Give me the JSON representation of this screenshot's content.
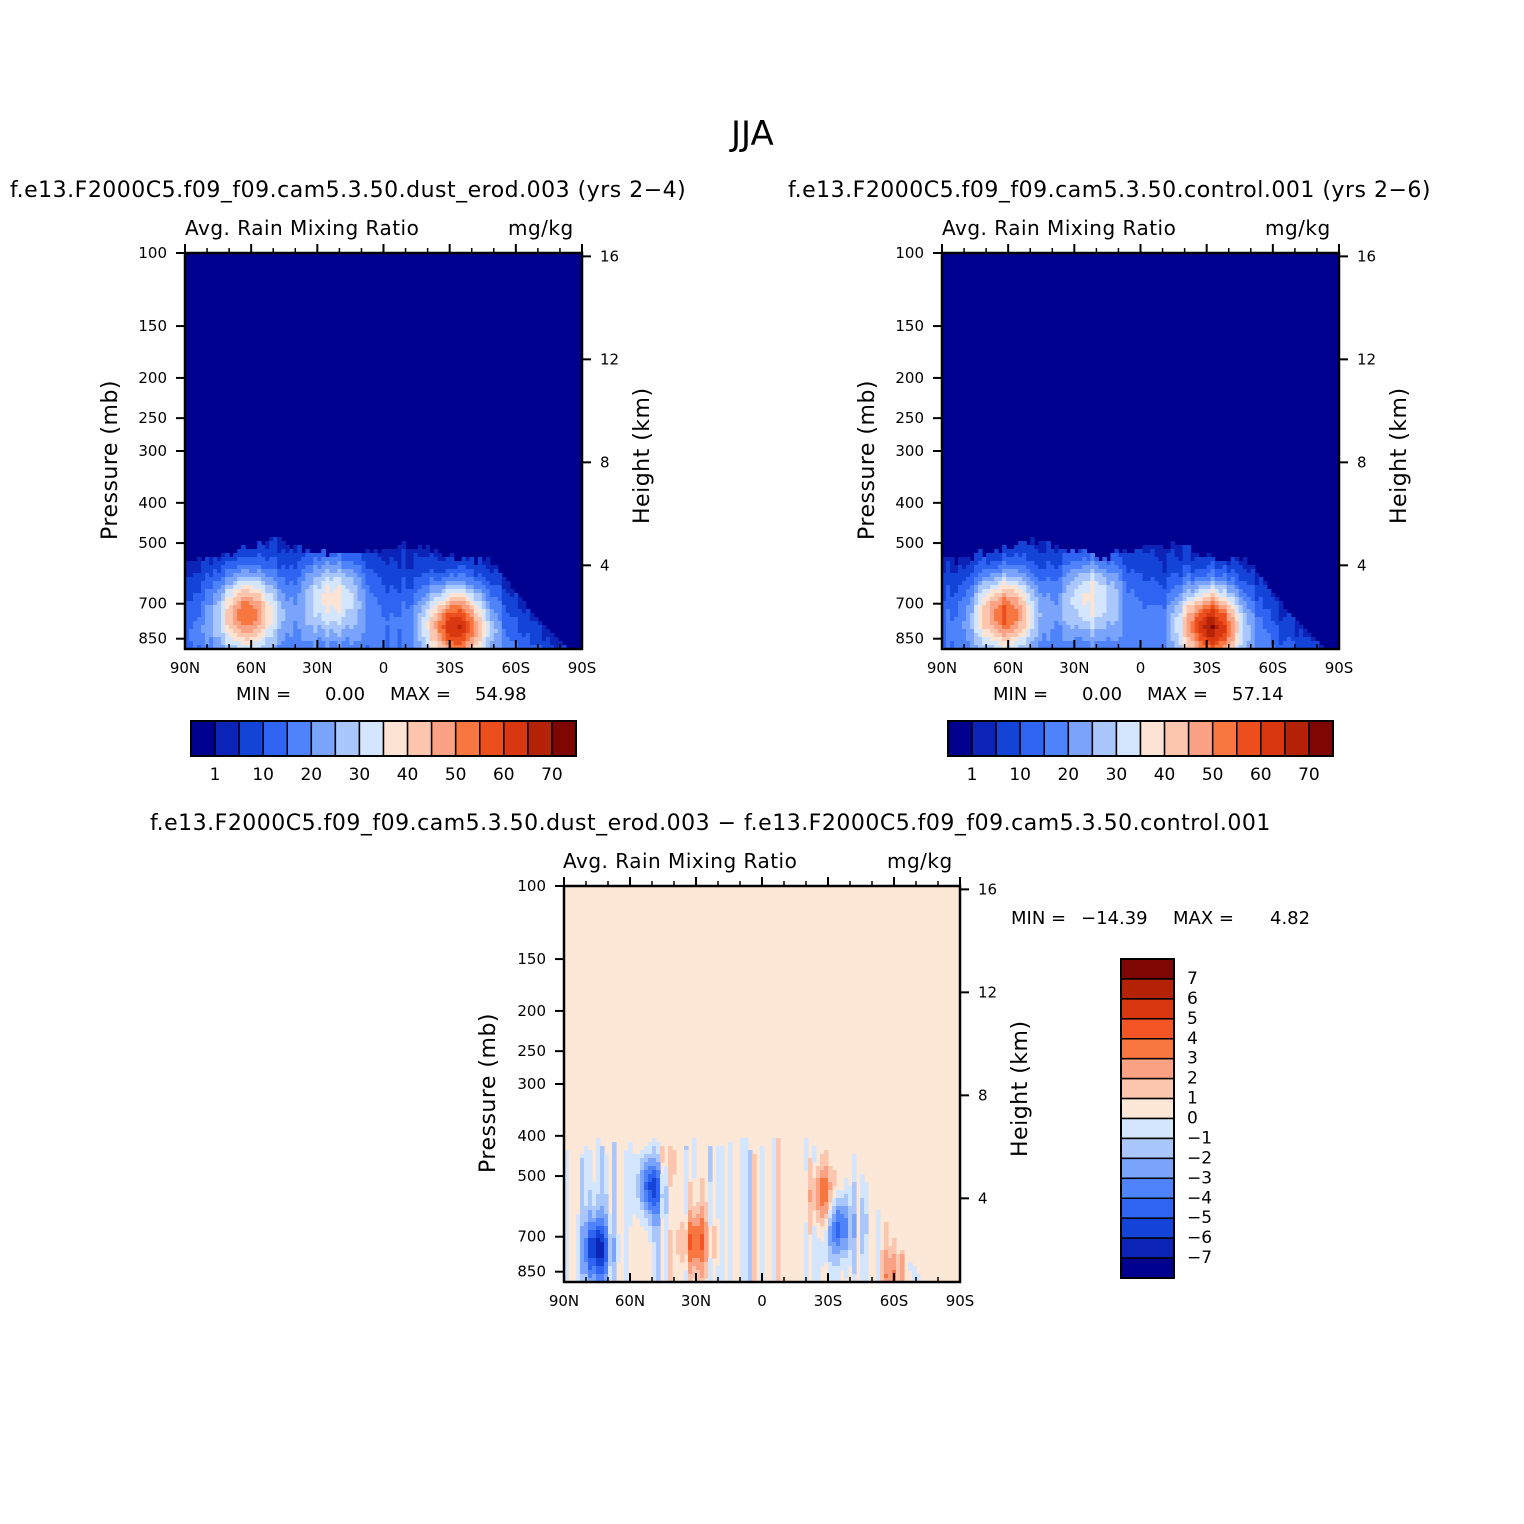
{
  "figure": {
    "title": "JJA",
    "difference_title": "f.e13.F2000C5.f09_f09.cam5.3.50.dust_erod.003 − f.e13.F2000C5.f09_f09.cam5.3.50.control.001"
  },
  "colors": {
    "abs_levels": [
      "#00008f",
      "#0b24b7",
      "#1444d7",
      "#2f63f2",
      "#4f83fb",
      "#7aa3fc",
      "#a9c7fd",
      "#d3e6fd",
      "#fde3d3",
      "#fcc6ae",
      "#fba184",
      "#f8763f",
      "#ed4e1d",
      "#d8370f",
      "#b42306",
      "#7e0704"
    ],
    "diff_levels": [
      "#00008f",
      "#0b24b7",
      "#1444d7",
      "#2f63f2",
      "#4f83fb",
      "#7aa3fc",
      "#a9c7fd",
      "#d3e6fd",
      "#fde8d8",
      "#fcc6ae",
      "#fba184",
      "#f8763f",
      "#f55525",
      "#d8370f",
      "#b42306",
      "#7e0704"
    ]
  },
  "chart_data": [
    {
      "type": "heatmap",
      "title": "f.e13.F2000C5.f09_f09.cam5.3.50.dust_erod.003 (yrs 2−4)",
      "left_label": "Avg. Rain Mixing Ratio",
      "right_label": "mg/kg",
      "ylabel": "Pressure (mb)",
      "y2label": "Height (km)",
      "x_ticks": [
        "90N",
        "60N",
        "30N",
        "0",
        "30S",
        "60S",
        "90S"
      ],
      "y_ticks": [
        "100",
        "150",
        "200",
        "250",
        "300",
        "400",
        "500",
        "700",
        "850"
      ],
      "y2_ticks": [
        "16",
        "12",
        "8",
        "4"
      ],
      "min_text": "MIN =",
      "min_value": "0.00",
      "max_text": "MAX =",
      "max_value": "54.98",
      "colorbar_labels": [
        "1",
        "10",
        "20",
        "30",
        "40",
        "50",
        "60",
        "70"
      ],
      "blobs": [
        {
          "lat": 62,
          "p": 730,
          "val": 40
        },
        {
          "lat": 23,
          "p": 660,
          "val": 28
        },
        {
          "lat": -33,
          "p": 790,
          "val": 50
        }
      ]
    },
    {
      "type": "heatmap",
      "title": "f.e13.F2000C5.f09_f09.cam5.3.50.control.001 (yrs 2−6)",
      "left_label": "Avg. Rain Mixing Ratio",
      "right_label": "mg/kg",
      "ylabel": "Pressure (mb)",
      "y2label": "Height (km)",
      "x_ticks": [
        "90N",
        "60N",
        "30N",
        "0",
        "30S",
        "60S",
        "90S"
      ],
      "y_ticks": [
        "100",
        "150",
        "200",
        "250",
        "300",
        "400",
        "500",
        "700",
        "850"
      ],
      "y2_ticks": [
        "16",
        "12",
        "8",
        "4"
      ],
      "min_text": "MIN =",
      "min_value": "0.00",
      "max_text": "MAX =",
      "max_value": "57.14",
      "colorbar_labels": [
        "1",
        "10",
        "20",
        "30",
        "40",
        "50",
        "60",
        "70"
      ],
      "blobs": [
        {
          "lat": 62,
          "p": 730,
          "val": 42
        },
        {
          "lat": 22,
          "p": 660,
          "val": 28
        },
        {
          "lat": -32,
          "p": 790,
          "val": 54
        }
      ]
    },
    {
      "type": "heatmap",
      "title": "f.e13.F2000C5.f09_f09.cam5.3.50.dust_erod.003 − f.e13.F2000C5.f09_f09.cam5.3.50.control.001",
      "left_label": "Avg. Rain Mixing Ratio",
      "right_label": "mg/kg",
      "ylabel": "Pressure (mb)",
      "y2label": "Height (km)",
      "x_ticks": [
        "90N",
        "60N",
        "30N",
        "0",
        "30S",
        "60S",
        "90S"
      ],
      "y_ticks": [
        "100",
        "150",
        "200",
        "250",
        "300",
        "400",
        "500",
        "700",
        "850"
      ],
      "y2_ticks": [
        "16",
        "12",
        "8",
        "4"
      ],
      "min_text": "MIN =",
      "min_value": "−14.39",
      "max_text": "MAX =",
      "max_value": "4.82",
      "colorbar_labels": [
        "7",
        "6",
        "5",
        "4",
        "3",
        "2",
        "1",
        "0",
        "−1",
        "−2",
        "−3",
        "−4",
        "−5",
        "−6",
        "−7"
      ],
      "blobs": [
        {
          "lat": 75,
          "p": 750,
          "val": -6
        },
        {
          "lat": 50,
          "p": 520,
          "val": -7
        },
        {
          "lat": 30,
          "p": 720,
          "val": 4
        },
        {
          "lat": 47,
          "p": 480,
          "val": 3
        },
        {
          "lat": -28,
          "p": 560,
          "val": 4
        },
        {
          "lat": -35,
          "p": 660,
          "val": -5
        },
        {
          "lat": -60,
          "p": 870,
          "val": 3
        }
      ]
    }
  ]
}
